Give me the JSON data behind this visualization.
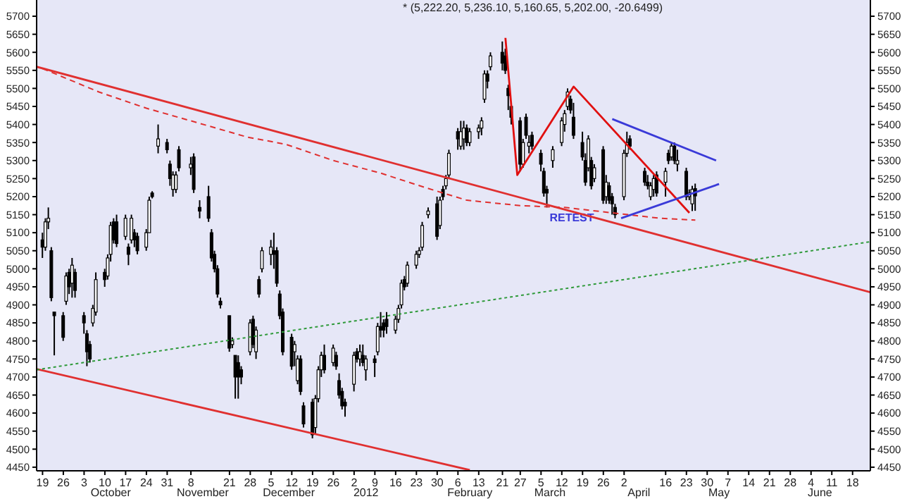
{
  "chart_data": {
    "type": "candlestick",
    "title": "* (5,222.20, 5,236.10, 5,160.65, 5,202.00, -20.6499)",
    "x": [
      "2011-09-19",
      "2011-09-20",
      "2011-09-21",
      "2011-09-22",
      "2011-09-23",
      "2011-09-26",
      "2011-09-27",
      "2011-09-28",
      "2011-09-29",
      "2011-09-30",
      "2011-10-03",
      "2011-10-04",
      "2011-10-05",
      "2011-10-06",
      "2011-10-07",
      "2011-10-10",
      "2011-10-11",
      "2011-10-12",
      "2011-10-13",
      "2011-10-14",
      "2011-10-17",
      "2011-10-18",
      "2011-10-19",
      "2011-10-20",
      "2011-10-21",
      "2011-10-24",
      "2011-10-25",
      "2011-10-26",
      "2011-10-28",
      "2011-10-31",
      "2011-11-01",
      "2011-11-02",
      "2011-11-03",
      "2011-11-04",
      "2011-11-08",
      "2011-11-09",
      "2011-11-11",
      "2011-11-14",
      "2011-11-15",
      "2011-11-16",
      "2011-11-17",
      "2011-11-18",
      "2011-11-21",
      "2011-11-22",
      "2011-11-23",
      "2011-11-24",
      "2011-11-25",
      "2011-11-28",
      "2011-11-29",
      "2011-11-30",
      "2011-12-01",
      "2011-12-02",
      "2011-12-05",
      "2011-12-06",
      "2011-12-07",
      "2011-12-08",
      "2011-12-09",
      "2011-12-12",
      "2011-12-13",
      "2011-12-14",
      "2011-12-15",
      "2011-12-16",
      "2011-12-19",
      "2011-12-20",
      "2011-12-21",
      "2011-12-22",
      "2011-12-23",
      "2011-12-26",
      "2011-12-27",
      "2011-12-28",
      "2011-12-29",
      "2011-12-30",
      "2012-01-02",
      "2012-01-03",
      "2012-01-04",
      "2012-01-05",
      "2012-01-06",
      "2012-01-09",
      "2012-01-10",
      "2012-01-11",
      "2012-01-12",
      "2012-01-13",
      "2012-01-16",
      "2012-01-17",
      "2012-01-18",
      "2012-01-19",
      "2012-01-20",
      "2012-01-23",
      "2012-01-24",
      "2012-01-25",
      "2012-01-27",
      "2012-01-30",
      "2012-01-31",
      "2012-02-01",
      "2012-02-02",
      "2012-02-03",
      "2012-02-06",
      "2012-02-07",
      "2012-02-08",
      "2012-02-09",
      "2012-02-10",
      "2012-02-13",
      "2012-02-14",
      "2012-02-15",
      "2012-02-16",
      "2012-02-17",
      "2012-02-21",
      "2012-02-22",
      "2012-02-23",
      "2012-02-24",
      "2012-02-27",
      "2012-02-28",
      "2012-02-29",
      "2012-03-01",
      "2012-03-02",
      "2012-03-05",
      "2012-03-06",
      "2012-03-07",
      "2012-03-09",
      "2012-03-12",
      "2012-03-13",
      "2012-03-14",
      "2012-03-15",
      "2012-03-16",
      "2012-03-19",
      "2012-03-20",
      "2012-03-21",
      "2012-03-22",
      "2012-03-23",
      "2012-03-26",
      "2012-03-27",
      "2012-03-28",
      "2012-03-29",
      "2012-03-30",
      "2012-04-02",
      "2012-04-03",
      "2012-04-04",
      "2012-04-09",
      "2012-04-10",
      "2012-04-11",
      "2012-04-12",
      "2012-04-13",
      "2012-04-16",
      "2012-04-17",
      "2012-04-18",
      "2012-04-19",
      "2012-04-20",
      "2012-04-23",
      "2012-04-24",
      "2012-04-25",
      "2012-04-26"
    ],
    "ohlc": [
      [
        5080,
        5100,
        5030,
        5060
      ],
      [
        5060,
        5140,
        5050,
        5130
      ],
      [
        5130,
        5170,
        5110,
        5140
      ],
      [
        5050,
        5060,
        4910,
        4920
      ],
      [
        4880,
        4880,
        4760,
        4870
      ],
      [
        4870,
        4880,
        4800,
        4810
      ],
      [
        4910,
        4990,
        4900,
        4980
      ],
      [
        4990,
        5000,
        4930,
        4950
      ],
      [
        4960,
        5030,
        4920,
        5010
      ],
      [
        4990,
        5000,
        4920,
        4940
      ],
      [
        4870,
        4880,
        4820,
        4850
      ],
      [
        4820,
        4830,
        4730,
        4770
      ],
      [
        4790,
        4800,
        4740,
        4750
      ],
      [
        4850,
        4900,
        4840,
        4890
      ],
      [
        4880,
        4990,
        4870,
        4970
      ],
      [
        4990,
        5000,
        4950,
        4970
      ],
      [
        4980,
        5040,
        4970,
        5030
      ],
      [
        5040,
        5130,
        5020,
        5120
      ],
      [
        5130,
        5140,
        5070,
        5080
      ],
      [
        5130,
        5150,
        5060,
        5070
      ],
      [
        5090,
        5150,
        5080,
        5140
      ],
      [
        5060,
        5070,
        5010,
        5040
      ],
      [
        5080,
        5150,
        5070,
        5140
      ],
      [
        5100,
        5110,
        5060,
        5080
      ],
      [
        5090,
        5100,
        5040,
        5050
      ],
      [
        5060,
        5110,
        5050,
        5100
      ],
      [
        5100,
        5200,
        5100,
        5190
      ],
      [
        5210,
        5215,
        5195,
        5200
      ],
      [
        5340,
        5400,
        5320,
        5360
      ],
      [
        5350,
        5360,
        5320,
        5330
      ],
      [
        5290,
        5300,
        5230,
        5250
      ],
      [
        5220,
        5270,
        5200,
        5260
      ],
      [
        5220,
        5270,
        5210,
        5260
      ],
      [
        5330,
        5340,
        5270,
        5280
      ],
      [
        5280,
        5310,
        5260,
        5290
      ],
      [
        5310,
        5320,
        5210,
        5220
      ],
      [
        5170,
        5190,
        5140,
        5160
      ],
      [
        5200,
        5230,
        5130,
        5140
      ],
      [
        5100,
        5110,
        5020,
        5030
      ],
      [
        5040,
        5050,
        4990,
        5000
      ],
      [
        5000,
        5010,
        4920,
        4930
      ],
      [
        4910,
        4920,
        4890,
        4900
      ],
      [
        4870,
        4870,
        4770,
        4780
      ],
      [
        4790,
        4810,
        4780,
        4800
      ],
      [
        4760,
        4760,
        4640,
        4700
      ],
      [
        4740,
        4760,
        4640,
        4700
      ],
      [
        4720,
        4730,
        4680,
        4700
      ],
      [
        4770,
        4860,
        4760,
        4850
      ],
      [
        4860,
        4870,
        4780,
        4790
      ],
      [
        4770,
        4840,
        4750,
        4830
      ],
      [
        4970,
        4980,
        4920,
        4930
      ],
      [
        5000,
        5060,
        4990,
        5050
      ],
      [
        5040,
        5080,
        5010,
        5060
      ],
      [
        5050,
        5100,
        5000,
        5040
      ],
      [
        5050,
        5060,
        4950,
        4960
      ],
      [
        4930,
        4940,
        4860,
        4870
      ],
      [
        4880,
        4890,
        4760,
        4770
      ],
      [
        4810,
        4820,
        4720,
        4730
      ],
      [
        4770,
        4800,
        4730,
        4790
      ],
      [
        4690,
        4760,
        4680,
        4750
      ],
      [
        4750,
        4760,
        4650,
        4660
      ],
      [
        4620,
        4630,
        4560,
        4570
      ],
      [
        4630,
        4640,
        4530,
        4540
      ],
      [
        4560,
        4650,
        4540,
        4640
      ],
      [
        4640,
        4730,
        4630,
        4720
      ],
      [
        4720,
        4770,
        4700,
        4760
      ],
      [
        4760,
        4790,
        4710,
        4720
      ],
      [
        4740,
        4790,
        4730,
        4780
      ],
      [
        4760,
        4770,
        4720,
        4730
      ],
      [
        4690,
        4710,
        4640,
        4650
      ],
      [
        4660,
        4670,
        4610,
        4620
      ],
      [
        4630,
        4640,
        4590,
        4620
      ],
      [
        4680,
        4770,
        4660,
        4760
      ],
      [
        4770,
        4780,
        4740,
        4750
      ],
      [
        4750,
        4790,
        4730,
        4770
      ],
      [
        4760,
        4790,
        4730,
        4740
      ],
      [
        4720,
        4760,
        4690,
        4750
      ],
      [
        4750,
        4760,
        4700,
        4740
      ],
      [
        4770,
        4850,
        4760,
        4840
      ],
      [
        4840,
        4880,
        4810,
        4830
      ],
      [
        4850,
        4860,
        4810,
        4830
      ],
      [
        4860,
        4880,
        4820,
        4840
      ],
      [
        4830,
        4870,
        4820,
        4860
      ],
      [
        4860,
        4900,
        4850,
        4890
      ],
      [
        4900,
        4970,
        4890,
        4960
      ],
      [
        4970,
        4980,
        4940,
        4950
      ],
      [
        4960,
        5020,
        4950,
        5010
      ],
      [
        5010,
        5050,
        5000,
        5040
      ],
      [
        5040,
        5060,
        5030,
        5050
      ],
      [
        5060,
        5130,
        5050,
        5120
      ],
      [
        5150,
        5170,
        5140,
        5160
      ],
      [
        5180,
        5200,
        5080,
        5090
      ],
      [
        5120,
        5200,
        5110,
        5190
      ],
      [
        5220,
        5230,
        5190,
        5200
      ],
      [
        5230,
        5260,
        5220,
        5250
      ],
      [
        5260,
        5330,
        5250,
        5320
      ],
      [
        5380,
        5390,
        5330,
        5360
      ],
      [
        5340,
        5410,
        5330,
        5380
      ],
      [
        5360,
        5410,
        5330,
        5390
      ],
      [
        5390,
        5400,
        5340,
        5350
      ],
      [
        5350,
        5390,
        5340,
        5380
      ],
      [
        5380,
        5400,
        5360,
        5390
      ],
      [
        5390,
        5420,
        5370,
        5410
      ],
      [
        5470,
        5550,
        5460,
        5540
      ],
      [
        5540,
        5550,
        5500,
        5520
      ],
      [
        5560,
        5600,
        5550,
        5590
      ],
      [
        5600,
        5630,
        5550,
        5570
      ],
      [
        5590,
        5610,
        5540,
        5550
      ],
      [
        5500,
        5510,
        5440,
        5480
      ],
      [
        5450,
        5460,
        5400,
        5420
      ],
      [
        5410,
        5420,
        5270,
        5290
      ],
      [
        5290,
        5360,
        5280,
        5350
      ],
      [
        5420,
        5430,
        5360,
        5370
      ],
      [
        5340,
        5370,
        5320,
        5350
      ],
      [
        5370,
        5380,
        5330,
        5340
      ],
      [
        5320,
        5330,
        5270,
        5290
      ],
      [
        5270,
        5280,
        5200,
        5210
      ],
      [
        5220,
        5230,
        5170,
        5210
      ],
      [
        5300,
        5340,
        5280,
        5330
      ],
      [
        5350,
        5420,
        5340,
        5410
      ],
      [
        5400,
        5440,
        5380,
        5430
      ],
      [
        5450,
        5500,
        5440,
        5490
      ],
      [
        5470,
        5480,
        5430,
        5440
      ],
      [
        5420,
        5460,
        5360,
        5370
      ],
      [
        5350,
        5380,
        5300,
        5310
      ],
      [
        5300,
        5320,
        5230,
        5240
      ],
      [
        5280,
        5370,
        5270,
        5360
      ],
      [
        5300,
        5310,
        5220,
        5230
      ],
      [
        5250,
        5290,
        5240,
        5280
      ],
      [
        5330,
        5340,
        5180,
        5190
      ],
      [
        5200,
        5260,
        5180,
        5240
      ],
      [
        5230,
        5240,
        5180,
        5190
      ],
      [
        5200,
        5210,
        5150,
        5180
      ],
      [
        5170,
        5180,
        5140,
        5150
      ],
      [
        5200,
        5330,
        5190,
        5320
      ],
      [
        5320,
        5380,
        5310,
        5350
      ],
      [
        5360,
        5370,
        5330,
        5340
      ],
      [
        5270,
        5280,
        5230,
        5240
      ],
      [
        5240,
        5260,
        5220,
        5230
      ],
      [
        5200,
        5240,
        5190,
        5230
      ],
      [
        5220,
        5260,
        5200,
        5250
      ],
      [
        5260,
        5270,
        5200,
        5210
      ],
      [
        5240,
        5280,
        5200,
        5270
      ],
      [
        5320,
        5330,
        5290,
        5300
      ],
      [
        5310,
        5350,
        5300,
        5340
      ],
      [
        5340,
        5350,
        5290,
        5300
      ],
      [
        5290,
        5330,
        5270,
        5300
      ],
      [
        5270,
        5280,
        5190,
        5200
      ],
      [
        5200,
        5220,
        5190,
        5210
      ],
      [
        5180,
        5230,
        5160,
        5220
      ],
      [
        5222.2,
        5236.1,
        5160.65,
        5202
      ]
    ],
    "series": [
      {
        "type": "line",
        "x": [
          "2011-09-17",
          "2012-06-24"
        ],
        "values": [
          5560,
          4935
        ],
        "color": "#e03030",
        "line_style": "solid"
      },
      {
        "type": "line",
        "x": [
          "2011-09-17",
          "2012-02-10"
        ],
        "values": [
          4722,
          4442
        ],
        "color": "#e03030",
        "line_style": "solid"
      },
      {
        "type": "line",
        "x": [
          "2011-09-17",
          "2012-06-24"
        ],
        "values": [
          4720,
          5075
        ],
        "color": "#2f9a3a",
        "line_style": "dotted"
      },
      {
        "type": "line",
        "x": [
          "2011-09-19",
          "2011-10-08",
          "2011-10-24",
          "2011-11-08",
          "2011-11-27",
          "2011-12-10",
          "2011-12-26",
          "2012-01-11",
          "2012-01-26",
          "2012-02-09",
          "2012-02-27",
          "2012-03-13",
          "2012-03-29",
          "2012-04-14",
          "2012-04-26"
        ],
        "values": [
          5555,
          5490,
          5445,
          5410,
          5365,
          5345,
          5300,
          5265,
          5225,
          5190,
          5175,
          5170,
          5155,
          5140,
          5135
        ],
        "color": "#e03030",
        "line_style": "dashed"
      },
      {
        "type": "line",
        "x": [
          "2012-02-22",
          "2012-02-26",
          "2012-03-16",
          "2012-04-24"
        ],
        "values": [
          5640,
          5260,
          5505,
          5155
        ],
        "color": "#e01010",
        "line_style": "solid"
      },
      {
        "type": "line",
        "x": [
          "2012-03-29",
          "2012-05-03"
        ],
        "values": [
          5415,
          5300
        ],
        "color": "#3a3ad8",
        "line_style": "solid"
      },
      {
        "type": "line",
        "x": [
          "2012-04-01",
          "2012-05-04"
        ],
        "values": [
          5140,
          5235
        ],
        "color": "#3a3ad8",
        "line_style": "solid"
      }
    ],
    "annotations": [
      "RETEST"
    ],
    "x2lim": [
      "2011-09-17",
      "2012-06-24"
    ],
    "x2ticks": [
      {
        "value": "2011-10-12",
        "label": "October"
      },
      {
        "value": "2011-11-12",
        "label": "November"
      },
      {
        "value": "2011-12-11",
        "label": "December"
      },
      {
        "value": "2012-01-06",
        "label": "2012"
      },
      {
        "value": "2012-02-10",
        "label": "February"
      },
      {
        "value": "2012-03-08",
        "label": "March"
      },
      {
        "value": "2012-04-07",
        "label": "April"
      },
      {
        "value": "2012-05-04",
        "label": "May"
      },
      {
        "value": "2012-06-07",
        "label": "June"
      }
    ],
    "xlim": [
      "2011-09-17",
      "2012-06-24"
    ],
    "xticks": [
      {
        "value": "2011-09-19",
        "label": "19"
      },
      {
        "value": "2011-09-26",
        "label": "26"
      },
      {
        "value": "2011-10-03",
        "label": "3"
      },
      {
        "value": "2011-10-10",
        "label": "10"
      },
      {
        "value": "2011-10-17",
        "label": "17"
      },
      {
        "value": "2011-10-24",
        "label": "24"
      },
      {
        "value": "2011-10-31",
        "label": "31"
      },
      {
        "value": "2011-11-08",
        "label": "8"
      },
      {
        "value": "2011-11-21",
        "label": "21"
      },
      {
        "value": "2011-11-28",
        "label": "28"
      },
      {
        "value": "2011-12-05",
        "label": "5"
      },
      {
        "value": "2011-12-12",
        "label": "12"
      },
      {
        "value": "2011-12-19",
        "label": "19"
      },
      {
        "value": "2011-12-26",
        "label": "26"
      },
      {
        "value": "2012-01-02",
        "label": "2"
      },
      {
        "value": "2012-01-09",
        "label": "9"
      },
      {
        "value": "2012-01-16",
        "label": "16"
      },
      {
        "value": "2012-01-23",
        "label": "23"
      },
      {
        "value": "2012-01-30",
        "label": "30"
      },
      {
        "value": "2012-02-06",
        "label": "6"
      },
      {
        "value": "2012-02-13",
        "label": "13"
      },
      {
        "value": "2012-02-21",
        "label": "21"
      },
      {
        "value": "2012-02-27",
        "label": "27"
      },
      {
        "value": "2012-03-05",
        "label": "5"
      },
      {
        "value": "2012-03-12",
        "label": "12"
      },
      {
        "value": "2012-03-19",
        "label": "19"
      },
      {
        "value": "2012-03-26",
        "label": "26"
      },
      {
        "value": "2012-04-02",
        "label": "2"
      },
      {
        "value": "2012-04-16",
        "label": "16"
      },
      {
        "value": "2012-04-23",
        "label": "23"
      },
      {
        "value": "2012-04-30",
        "label": "30"
      },
      {
        "value": "2012-05-07",
        "label": "7"
      },
      {
        "value": "2012-05-14",
        "label": "14"
      },
      {
        "value": "2012-05-21",
        "label": "21"
      },
      {
        "value": "2012-05-28",
        "label": "28"
      },
      {
        "value": "2012-06-04",
        "label": "4"
      },
      {
        "value": "2012-06-11",
        "label": "11"
      },
      {
        "value": "2012-06-18",
        "label": "18"
      }
    ],
    "ylim": [
      4440,
      5745
    ],
    "yticks": [
      4450,
      4500,
      4550,
      4600,
      4650,
      4700,
      4750,
      4800,
      4850,
      4900,
      4950,
      5000,
      5050,
      5100,
      5150,
      5200,
      5250,
      5300,
      5350,
      5400,
      5450,
      5500,
      5550,
      5600,
      5650,
      5700
    ],
    "y2lim": [
      4440,
      5745
    ],
    "y2ticks": [
      4450,
      4500,
      4550,
      4600,
      4650,
      4700,
      4750,
      4800,
      4850,
      4900,
      4950,
      5000,
      5050,
      5100,
      5150,
      5200,
      5250,
      5300,
      5350,
      5400,
      5450,
      5500,
      5550,
      5600,
      5650,
      5700
    ],
    "grid": false
  }
}
